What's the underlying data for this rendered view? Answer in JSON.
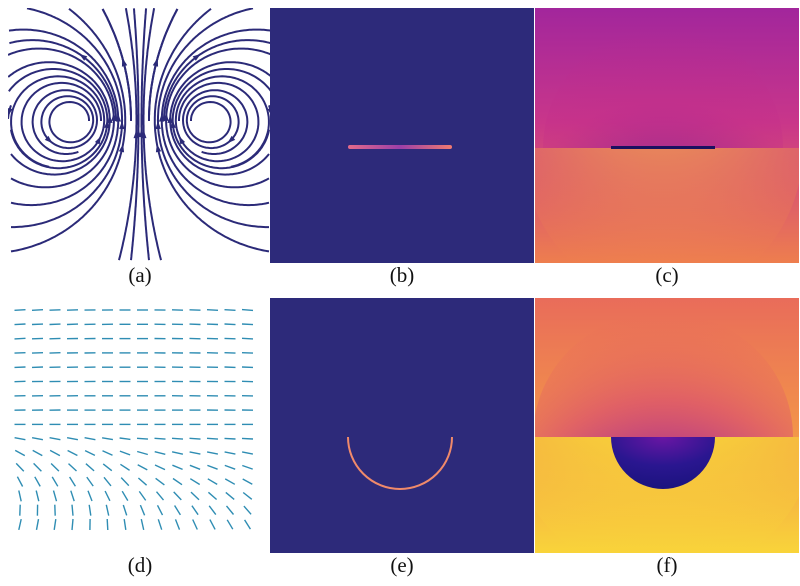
{
  "figure": {
    "panels": [
      {
        "id": "a",
        "caption": "(a)",
        "kind": "streamline-field"
      },
      {
        "id": "b",
        "caption": "(b)",
        "kind": "heatmap-line-source"
      },
      {
        "id": "c",
        "caption": "(c)",
        "kind": "phase-map-line-cut"
      },
      {
        "id": "d",
        "caption": "(d)",
        "kind": "director-field"
      },
      {
        "id": "e",
        "caption": "(e)",
        "kind": "heatmap-arc-source"
      },
      {
        "id": "f",
        "caption": "(f)",
        "kind": "phase-map-semicircle"
      }
    ],
    "colors": {
      "stream": "#2b2a78",
      "director": "#2f8db3",
      "background_dark": "#2d2a7a",
      "plasma_low": "#1e1480",
      "plasma_mid": "#c0288a",
      "plasma_orange": "#f08a45",
      "plasma_high": "#f8e82a"
    }
  }
}
